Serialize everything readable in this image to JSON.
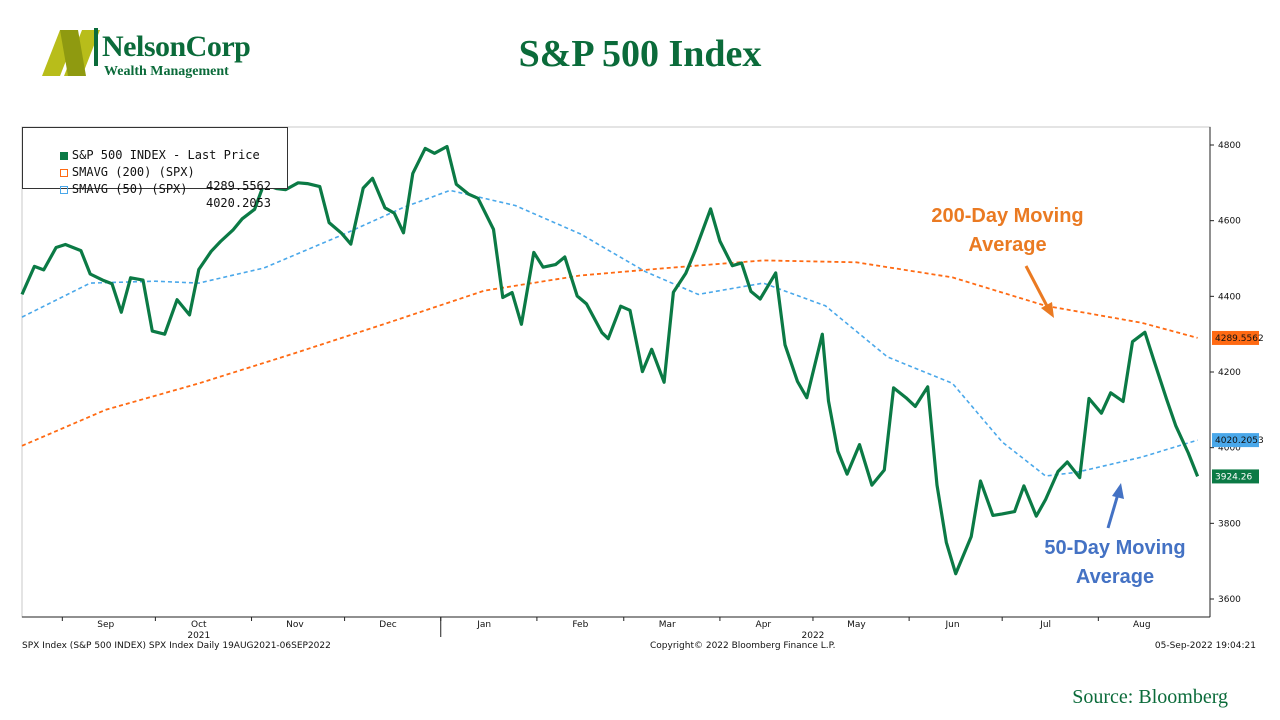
{
  "header": {
    "logo_name": "NelsonCorp",
    "logo_sub": "Wealth Management",
    "title": "S&P 500 Index"
  },
  "legend": {
    "rows": [
      {
        "label": "S&P 500 INDEX - Last Price",
        "value": "",
        "color": "#0b7a45"
      },
      {
        "label": "SMAVG (200) (SPX)",
        "value": "4289.5562",
        "color": "#ff6a13"
      },
      {
        "label": "SMAVG (50) (SPX)",
        "value": "4020.2053",
        "color": "#4aa8ea"
      }
    ]
  },
  "annotations": {
    "ma200_line1": "200-Day Moving",
    "ma200_line2": "Average",
    "ma50_line1": "50-Day Moving",
    "ma50_line2": "Average",
    "ma200_color": "#ea7a22",
    "ma50_color": "#4472c4"
  },
  "footer": {
    "left": "SPX Index (S&P 500 INDEX) SPX Index  Daily 19AUG2021-06SEP2022",
    "center": "Copyright© 2022 Bloomberg Finance L.P.",
    "right": "05-Sep-2022 19:04:21",
    "source": "Source: Bloomberg"
  },
  "chart_data": {
    "type": "line",
    "title": "S&P 500 Index",
    "x_range": [
      "2021-08-19",
      "2022-09-06"
    ],
    "ylim": [
      3600,
      4800
    ],
    "y_ticks": [
      3600,
      3800,
      4000,
      4200,
      4400,
      4600,
      4800
    ],
    "grid": false,
    "legend_position": "top-left",
    "month_ticks": [
      "Sep",
      "Oct",
      "Nov",
      "Dec",
      "Jan",
      "Feb",
      "Mar",
      "Apr",
      "May",
      "Jun",
      "Jul",
      "Aug"
    ],
    "year_labels": [
      "2021",
      "2022"
    ],
    "last_value_labels": [
      "4289.5562",
      "4020.2053",
      "3924.26"
    ],
    "series": [
      {
        "name": "S&P 500 INDEX - Last Price",
        "color": "#0b7a45",
        "points": [
          [
            "2021-08-19",
            4405
          ],
          [
            "2021-08-23",
            4479
          ],
          [
            "2021-08-26",
            4470
          ],
          [
            "2021-08-30",
            4529
          ],
          [
            "2021-09-02",
            4537
          ],
          [
            "2021-09-07",
            4521
          ],
          [
            "2021-09-10",
            4459
          ],
          [
            "2021-09-14",
            4443
          ],
          [
            "2021-09-17",
            4433
          ],
          [
            "2021-09-20",
            4358
          ],
          [
            "2021-09-23",
            4449
          ],
          [
            "2021-09-27",
            4443
          ],
          [
            "2021-09-30",
            4308
          ],
          [
            "2021-10-04",
            4300
          ],
          [
            "2021-10-08",
            4391
          ],
          [
            "2021-10-12",
            4351
          ],
          [
            "2021-10-15",
            4471
          ],
          [
            "2021-10-19",
            4519
          ],
          [
            "2021-10-22",
            4545
          ],
          [
            "2021-10-26",
            4575
          ],
          [
            "2021-10-29",
            4605
          ],
          [
            "2021-11-02",
            4630
          ],
          [
            "2021-11-05",
            4697
          ],
          [
            "2021-11-09",
            4685
          ],
          [
            "2021-11-12",
            4682
          ],
          [
            "2021-11-16",
            4700
          ],
          [
            "2021-11-19",
            4698
          ],
          [
            "2021-11-23",
            4690
          ],
          [
            "2021-11-26",
            4595
          ],
          [
            "2021-11-30",
            4567
          ],
          [
            "2021-12-03",
            4538
          ],
          [
            "2021-12-07",
            4686
          ],
          [
            "2021-12-10",
            4712
          ],
          [
            "2021-12-14",
            4634
          ],
          [
            "2021-12-17",
            4620
          ],
          [
            "2021-12-20",
            4568
          ],
          [
            "2021-12-23",
            4725
          ],
          [
            "2021-12-27",
            4791
          ],
          [
            "2021-12-30",
            4778
          ],
          [
            "2022-01-03",
            4796
          ],
          [
            "2022-01-06",
            4696
          ],
          [
            "2022-01-10",
            4670
          ],
          [
            "2022-01-13",
            4659
          ],
          [
            "2022-01-18",
            4577
          ],
          [
            "2022-01-21",
            4397
          ],
          [
            "2022-01-24",
            4410
          ],
          [
            "2022-01-27",
            4326
          ],
          [
            "2022-01-31",
            4516
          ],
          [
            "2022-02-03",
            4477
          ],
          [
            "2022-02-07",
            4484
          ],
          [
            "2022-02-10",
            4504
          ],
          [
            "2022-02-14",
            4401
          ],
          [
            "2022-02-17",
            4380
          ],
          [
            "2022-02-22",
            4304
          ],
          [
            "2022-02-24",
            4288
          ],
          [
            "2022-02-28",
            4374
          ],
          [
            "2022-03-03",
            4363
          ],
          [
            "2022-03-07",
            4201
          ],
          [
            "2022-03-10",
            4260
          ],
          [
            "2022-03-14",
            4173
          ],
          [
            "2022-03-17",
            4411
          ],
          [
            "2022-03-21",
            4461
          ],
          [
            "2022-03-24",
            4520
          ],
          [
            "2022-03-29",
            4631
          ],
          [
            "2022-04-01",
            4546
          ],
          [
            "2022-04-05",
            4481
          ],
          [
            "2022-04-08",
            4488
          ],
          [
            "2022-04-11",
            4413
          ],
          [
            "2022-04-14",
            4393
          ],
          [
            "2022-04-19",
            4462
          ],
          [
            "2022-04-22",
            4272
          ],
          [
            "2022-04-26",
            4175
          ],
          [
            "2022-04-29",
            4132
          ],
          [
            "2022-05-04",
            4300
          ],
          [
            "2022-05-06",
            4123
          ],
          [
            "2022-05-09",
            3991
          ],
          [
            "2022-05-12",
            3930
          ],
          [
            "2022-05-16",
            4008
          ],
          [
            "2022-05-20",
            3901
          ],
          [
            "2022-05-24",
            3941
          ],
          [
            "2022-05-27",
            4158
          ],
          [
            "2022-05-31",
            4132
          ],
          [
            "2022-06-03",
            4109
          ],
          [
            "2022-06-07",
            4161
          ],
          [
            "2022-06-10",
            3901
          ],
          [
            "2022-06-13",
            3750
          ],
          [
            "2022-06-16",
            3667
          ],
          [
            "2022-06-21",
            3765
          ],
          [
            "2022-06-24",
            3912
          ],
          [
            "2022-06-28",
            3821
          ],
          [
            "2022-07-01",
            3825
          ],
          [
            "2022-07-05",
            3831
          ],
          [
            "2022-07-08",
            3899
          ],
          [
            "2022-07-12",
            3819
          ],
          [
            "2022-07-15",
            3863
          ],
          [
            "2022-07-19",
            3937
          ],
          [
            "2022-07-22",
            3962
          ],
          [
            "2022-07-26",
            3921
          ],
          [
            "2022-07-29",
            4130
          ],
          [
            "2022-08-02",
            4091
          ],
          [
            "2022-08-05",
            4145
          ],
          [
            "2022-08-09",
            4122
          ],
          [
            "2022-08-12",
            4280
          ],
          [
            "2022-08-16",
            4305
          ],
          [
            "2022-08-19",
            4228
          ],
          [
            "2022-08-23",
            4128
          ],
          [
            "2022-08-26",
            4057
          ],
          [
            "2022-08-30",
            3986
          ],
          [
            "2022-09-02",
            3924
          ]
        ]
      },
      {
        "name": "SMAVG (200) (SPX)",
        "color": "#ff6a13",
        "points": [
          [
            "2021-08-19",
            4005
          ],
          [
            "2021-09-15",
            4100
          ],
          [
            "2021-10-15",
            4170
          ],
          [
            "2021-11-15",
            4250
          ],
          [
            "2021-12-15",
            4330
          ],
          [
            "2022-01-15",
            4415
          ],
          [
            "2022-02-15",
            4455
          ],
          [
            "2022-03-15",
            4475
          ],
          [
            "2022-04-15",
            4495
          ],
          [
            "2022-05-15",
            4490
          ],
          [
            "2022-06-15",
            4450
          ],
          [
            "2022-07-15",
            4375
          ],
          [
            "2022-08-15",
            4330
          ],
          [
            "2022-09-02",
            4290
          ]
        ]
      },
      {
        "name": "SMAVG (50) (SPX)",
        "color": "#4aa8ea",
        "points": [
          [
            "2021-08-19",
            4345
          ],
          [
            "2021-09-10",
            4435
          ],
          [
            "2021-10-01",
            4440
          ],
          [
            "2021-10-15",
            4435
          ],
          [
            "2021-11-05",
            4475
          ],
          [
            "2021-12-01",
            4565
          ],
          [
            "2021-12-20",
            4635
          ],
          [
            "2022-01-04",
            4680
          ],
          [
            "2022-01-25",
            4640
          ],
          [
            "2022-02-15",
            4565
          ],
          [
            "2022-03-08",
            4465
          ],
          [
            "2022-03-25",
            4405
          ],
          [
            "2022-04-15",
            4435
          ],
          [
            "2022-05-05",
            4375
          ],
          [
            "2022-05-25",
            4240
          ],
          [
            "2022-06-15",
            4170
          ],
          [
            "2022-07-01",
            4015
          ],
          [
            "2022-07-15",
            3925
          ],
          [
            "2022-07-25",
            3935
          ],
          [
            "2022-08-15",
            3975
          ],
          [
            "2022-09-02",
            4020
          ]
        ]
      }
    ]
  }
}
